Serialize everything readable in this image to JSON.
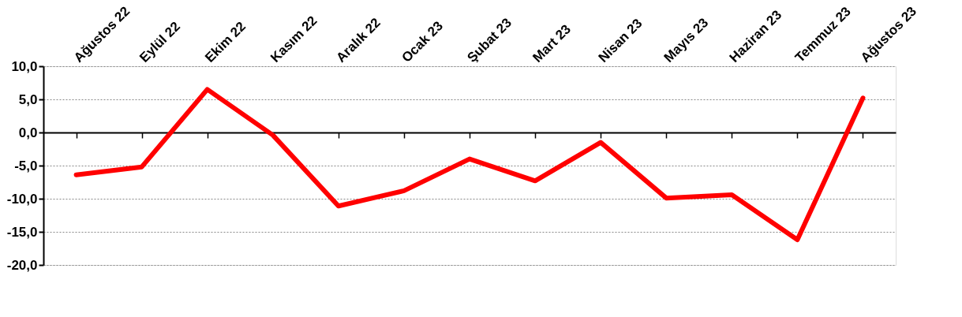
{
  "chart_data": {
    "type": "line",
    "categories": [
      "Ağustos 22",
      "Eylül 22",
      "Ekim 22",
      "Kasım 22",
      "Aralık 22",
      "Ocak 23",
      "Şubat 23",
      "Mart 23",
      "Nisan 23",
      "Mayıs 23",
      "Haziran 23",
      "Temmuz 23",
      "Ağustos 23"
    ],
    "series": [
      {
        "color": "#ff0000",
        "values": [
          -6.4,
          -5.2,
          6.5,
          -0.4,
          -11.1,
          -8.8,
          -4.0,
          -7.3,
          -1.5,
          -9.9,
          -9.4,
          -16.2,
          5.2
        ]
      }
    ],
    "ylim": [
      -20,
      10
    ],
    "yticks": [
      {
        "value": -20,
        "label": "-20,0"
      },
      {
        "value": -15,
        "label": "-15,0"
      },
      {
        "value": -10,
        "label": "-10,0"
      },
      {
        "value": -5,
        "label": "-5,0"
      },
      {
        "value": 0,
        "label": "0,0"
      },
      {
        "value": 5,
        "label": "5,0"
      },
      {
        "value": 10,
        "label": "10,0"
      }
    ],
    "grid": "y",
    "marker": "none",
    "line_style": "solid"
  }
}
